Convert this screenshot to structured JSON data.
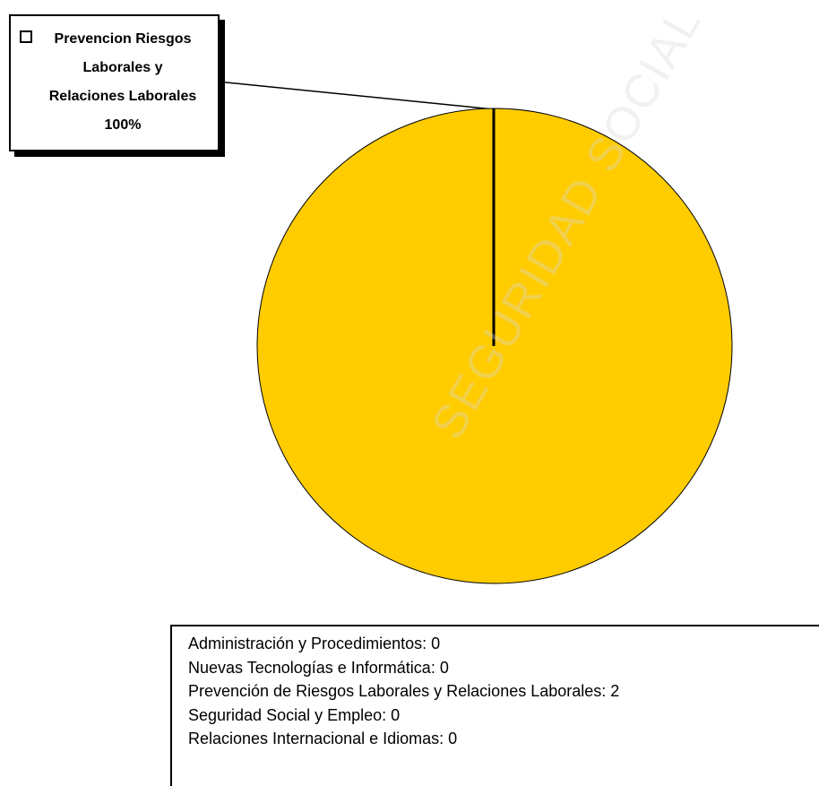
{
  "chart_data": {
    "type": "pie",
    "slices": [
      {
        "label": "Prevencion Riesgos Laborales y Relaciones Laborales",
        "value": 2,
        "percent": "100%",
        "color": "#ffcc00"
      }
    ],
    "callout_lines": [
      "Prevencion Riesgos",
      "Laborales y",
      "Relaciones Laborales",
      "100%"
    ]
  },
  "counts": [
    "Administración y Procedimientos:  0",
    "Nuevas Tecnologías e Informática:  0",
    "Prevención de Riesgos Laborales y Relaciones Laborales:  2",
    "Seguridad Social y Empleo:  0",
    "Relaciones Internacional e Idiomas:  0"
  ],
  "watermark": "SEGURIDAD SOCIAL",
  "colors": {
    "slice": "#ffcc00",
    "outline": "#000000",
    "watermark": "#d8d8d8"
  }
}
